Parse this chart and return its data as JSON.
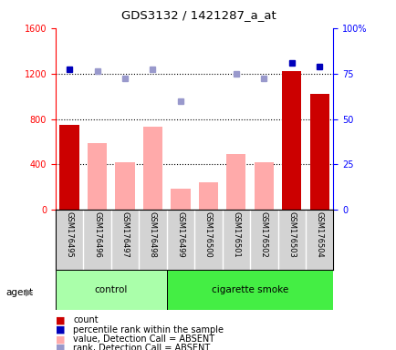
{
  "title": "GDS3132 / 1421287_a_at",
  "samples": [
    "GSM176495",
    "GSM176496",
    "GSM176497",
    "GSM176498",
    "GSM176499",
    "GSM176500",
    "GSM176501",
    "GSM176502",
    "GSM176503",
    "GSM176504"
  ],
  "count_values": [
    750,
    null,
    null,
    null,
    null,
    null,
    null,
    null,
    1220,
    1020
  ],
  "value_absent": [
    null,
    590,
    420,
    730,
    185,
    245,
    490,
    420,
    null,
    null
  ],
  "percentile_dark_blue_left": [
    1240,
    null,
    null,
    null,
    null,
    null,
    null,
    null,
    1290,
    1260
  ],
  "percentile_light_blue_left": [
    null,
    1220,
    1155,
    1240,
    960,
    null,
    1195,
    1155,
    null,
    null
  ],
  "ylim_left": [
    0,
    1600
  ],
  "ylim_right": [
    0,
    100
  ],
  "yticks_left": [
    0,
    400,
    800,
    1200,
    1600
  ],
  "ytick_labels_left": [
    "0",
    "400",
    "800",
    "1200",
    "1600"
  ],
  "yticks_right": [
    0,
    25,
    50,
    75,
    100
  ],
  "ytick_labels_right": [
    "0",
    "25",
    "50",
    "75",
    "100%"
  ],
  "grid_lines": [
    400,
    800,
    1200
  ],
  "bar_color_present": "#cc0000",
  "bar_color_absent": "#ffaaaa",
  "dot_color_dark": "#0000bb",
  "dot_color_light": "#9999cc",
  "control_color": "#aaffaa",
  "smoke_color": "#44ee44",
  "agent_label": "agent",
  "figsize": [
    4.35,
    3.84
  ],
  "dpi": 100
}
